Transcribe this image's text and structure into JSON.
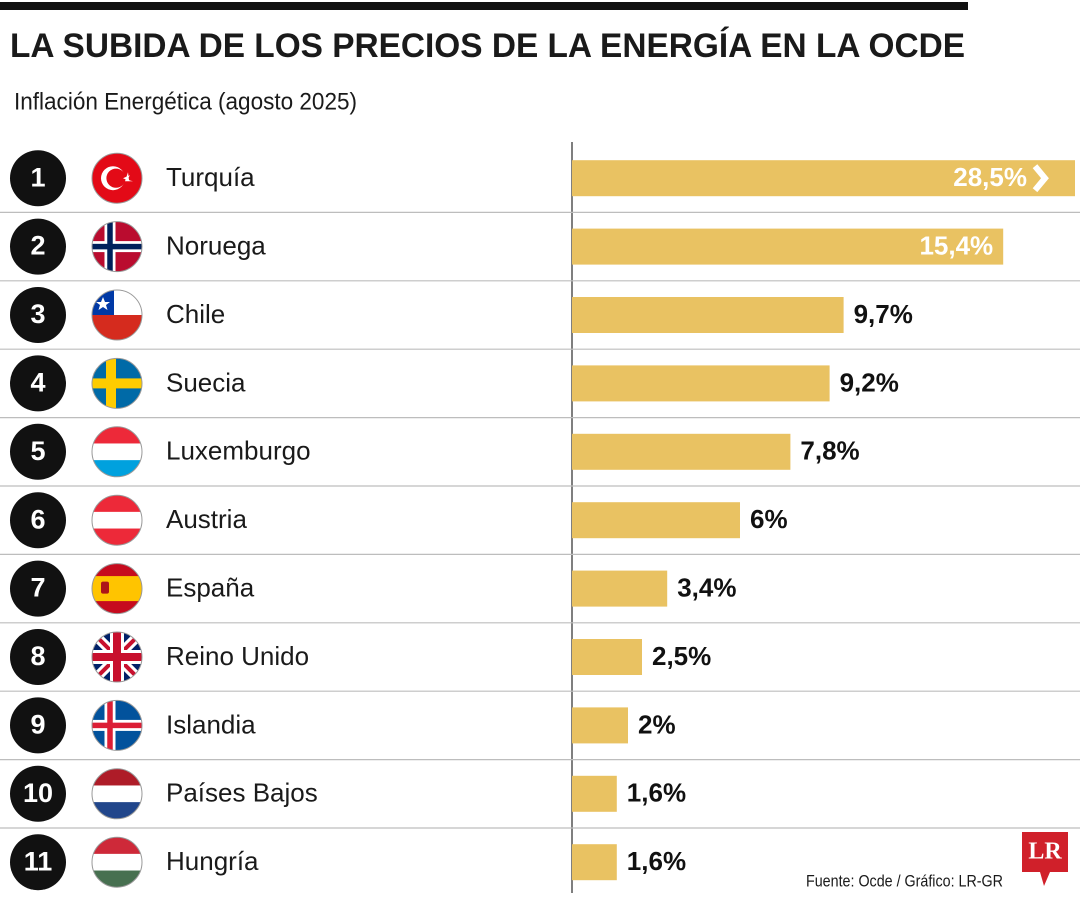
{
  "chart_data": {
    "type": "bar",
    "title": "LA SUBIDA DE LOS PRECIOS DE LA ENERGÍA EN LA OCDE",
    "subtitle": "Inflación Energética (agosto 2025)",
    "ranks": [
      1,
      2,
      3,
      4,
      5,
      6,
      7,
      8,
      9,
      10,
      11
    ],
    "categories": [
      "Turquía",
      "Noruega",
      "Chile",
      "Suecia",
      "Luxemburgo",
      "Austria",
      "España",
      "Reino Unido",
      "Islandia",
      "Países Bajos",
      "Hungría"
    ],
    "values": [
      28.5,
      15.4,
      9.7,
      9.2,
      7.8,
      6,
      3.4,
      2.5,
      2,
      1.6,
      1.6
    ],
    "value_labels": [
      "28,5%",
      "15,4%",
      "9,7%",
      "9,2%",
      "7,8%",
      "6%",
      "3,4%",
      "2,5%",
      "2%",
      "1,6%",
      "1,6%"
    ],
    "color": "#e9c262",
    "source": "Fuente: Ocde / Gráfico: LR-GR",
    "logo": "LR"
  }
}
